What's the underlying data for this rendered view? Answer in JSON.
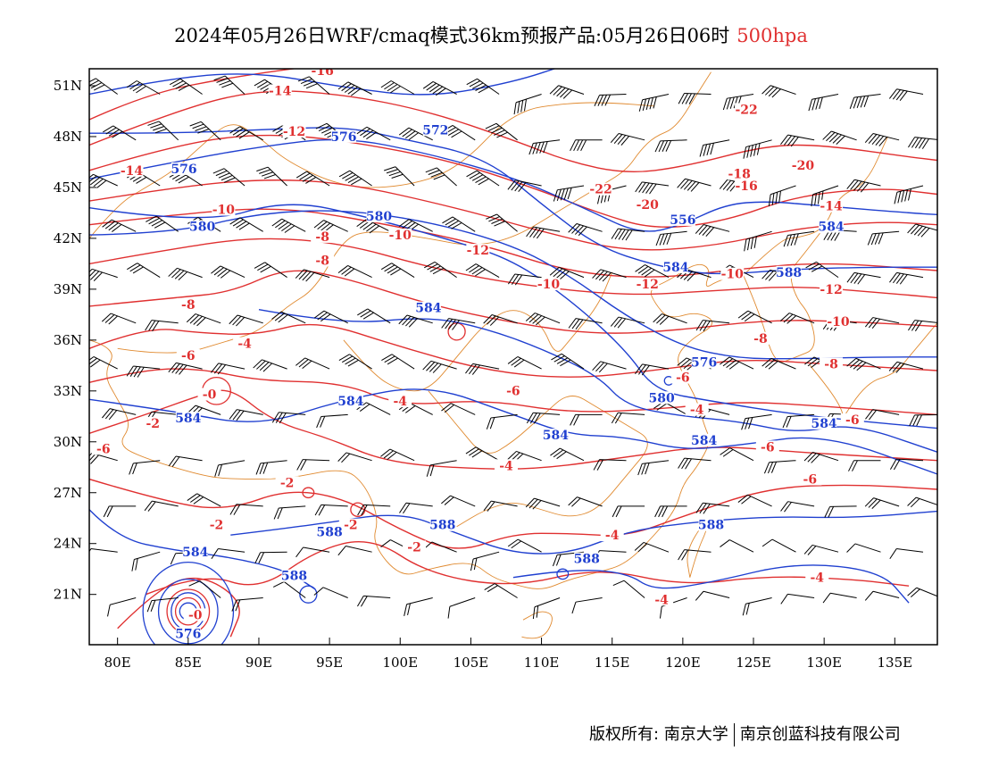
{
  "header": {
    "title": "2024年05月26日WRF/cmaq模式36km预报产品:05月26日06时",
    "level": "500hpa"
  },
  "colors": {
    "temperature": "#e03030",
    "height": "#2040d0",
    "border": "#e08a30",
    "wind": "#000000"
  },
  "axes": {
    "lat_labels": [
      "51N",
      "48N",
      "45N",
      "42N",
      "39N",
      "36N",
      "33N",
      "30N",
      "27N",
      "24N",
      "21N"
    ],
    "lon_labels": [
      "80E",
      "85E",
      "90E",
      "95E",
      "100E",
      "105E",
      "110E",
      "115E",
      "120E",
      "125E",
      "130E",
      "135E"
    ]
  },
  "temperature_labels": [
    {
      "text": "-16",
      "lon": 94.5,
      "lat": 51.8
    },
    {
      "text": "-14",
      "lon": 91.5,
      "lat": 50.6
    },
    {
      "text": "-12",
      "lon": 92.5,
      "lat": 48.2
    },
    {
      "text": "-14",
      "lon": 81.0,
      "lat": 45.9
    },
    {
      "text": "-10",
      "lon": 87.5,
      "lat": 43.6
    },
    {
      "text": "-8",
      "lon": 94.5,
      "lat": 42.0
    },
    {
      "text": "-10",
      "lon": 100.0,
      "lat": 42.1
    },
    {
      "text": "-8",
      "lon": 94.5,
      "lat": 40.6
    },
    {
      "text": "-12",
      "lon": 105.5,
      "lat": 41.2
    },
    {
      "text": "-22",
      "lon": 124.5,
      "lat": 49.5
    },
    {
      "text": "-22",
      "lon": 114.2,
      "lat": 44.8
    },
    {
      "text": "-20",
      "lon": 117.5,
      "lat": 43.9
    },
    {
      "text": "-18",
      "lon": 124.0,
      "lat": 45.7
    },
    {
      "text": "-16",
      "lon": 124.5,
      "lat": 45.0
    },
    {
      "text": "-20",
      "lon": 128.5,
      "lat": 46.2
    },
    {
      "text": "-14",
      "lon": 130.5,
      "lat": 43.8
    },
    {
      "text": "-10",
      "lon": 110.5,
      "lat": 39.2
    },
    {
      "text": "-12",
      "lon": 117.5,
      "lat": 39.2
    },
    {
      "text": "-10",
      "lon": 123.5,
      "lat": 39.8
    },
    {
      "text": "-12",
      "lon": 130.5,
      "lat": 38.9
    },
    {
      "text": "-10",
      "lon": 131.0,
      "lat": 37.0
    },
    {
      "text": "-8",
      "lon": 125.5,
      "lat": 36.0
    },
    {
      "text": "-8",
      "lon": 130.5,
      "lat": 34.5
    },
    {
      "text": "-8",
      "lon": 85.0,
      "lat": 38.0
    },
    {
      "text": "-6",
      "lon": 85.0,
      "lat": 35.0
    },
    {
      "text": "-4",
      "lon": 89.0,
      "lat": 35.7
    },
    {
      "text": "-6",
      "lon": 108.0,
      "lat": 32.9
    },
    {
      "text": "-6",
      "lon": 120.0,
      "lat": 33.7
    },
    {
      "text": "-4",
      "lon": 100.0,
      "lat": 32.3
    },
    {
      "text": "-4",
      "lon": 121.0,
      "lat": 31.8
    },
    {
      "text": "-0",
      "lon": 86.5,
      "lat": 32.7
    },
    {
      "text": "-2",
      "lon": 82.5,
      "lat": 31.0
    },
    {
      "text": "-6",
      "lon": 79.0,
      "lat": 29.5
    },
    {
      "text": "-2",
      "lon": 92.0,
      "lat": 27.5
    },
    {
      "text": "-2",
      "lon": 87.0,
      "lat": 25.0
    },
    {
      "text": "-2",
      "lon": 96.5,
      "lat": 25.0
    },
    {
      "text": "-2",
      "lon": 101.0,
      "lat": 23.7
    },
    {
      "text": "-4",
      "lon": 107.5,
      "lat": 28.5
    },
    {
      "text": "-4",
      "lon": 115.0,
      "lat": 24.4
    },
    {
      "text": "-6",
      "lon": 126.0,
      "lat": 29.6
    },
    {
      "text": "-6",
      "lon": 129.0,
      "lat": 27.7
    },
    {
      "text": "-6",
      "lon": 132.0,
      "lat": 31.2
    },
    {
      "text": "-4",
      "lon": 129.5,
      "lat": 21.9
    },
    {
      "text": "-4",
      "lon": 118.5,
      "lat": 20.6
    },
    {
      "text": "-0",
      "lon": 85.5,
      "lat": 19.7
    }
  ],
  "height_labels": [
    {
      "text": "576",
      "lon": 96.0,
      "lat": 47.9
    },
    {
      "text": "572",
      "lon": 102.5,
      "lat": 48.3
    },
    {
      "text": "576",
      "lon": 84.7,
      "lat": 46.0
    },
    {
      "text": "580",
      "lon": 98.5,
      "lat": 43.2
    },
    {
      "text": "580",
      "lon": 86.0,
      "lat": 42.6
    },
    {
      "text": "556",
      "lon": 120.0,
      "lat": 43.0
    },
    {
      "text": "584",
      "lon": 130.5,
      "lat": 42.6
    },
    {
      "text": "584",
      "lon": 119.5,
      "lat": 40.2
    },
    {
      "text": "588",
      "lon": 127.5,
      "lat": 39.9
    },
    {
      "text": "584",
      "lon": 102.0,
      "lat": 37.8
    },
    {
      "text": "576",
      "lon": 121.5,
      "lat": 34.6
    },
    {
      "text": "580",
      "lon": 118.5,
      "lat": 32.5
    },
    {
      "text": "584",
      "lon": 96.5,
      "lat": 32.3
    },
    {
      "text": "584",
      "lon": 85.0,
      "lat": 31.3
    },
    {
      "text": "584",
      "lon": 111.0,
      "lat": 30.3
    },
    {
      "text": "584",
      "lon": 121.5,
      "lat": 30.0
    },
    {
      "text": "584",
      "lon": 130.0,
      "lat": 31.0
    },
    {
      "text": "588",
      "lon": 95.0,
      "lat": 24.6
    },
    {
      "text": "588",
      "lon": 103.0,
      "lat": 25.0
    },
    {
      "text": "588",
      "lon": 122.0,
      "lat": 25.0
    },
    {
      "text": "588",
      "lon": 113.2,
      "lat": 23.0
    },
    {
      "text": "584",
      "lon": 85.5,
      "lat": 23.4
    },
    {
      "text": "588",
      "lon": 92.5,
      "lat": 22.0
    },
    {
      "text": "576",
      "lon": 85.0,
      "lat": 18.6
    }
  ],
  "footer": {
    "copyright_left": "版权所有: 南京大学",
    "copyright_right": "南京创蓝科技有限公司"
  }
}
